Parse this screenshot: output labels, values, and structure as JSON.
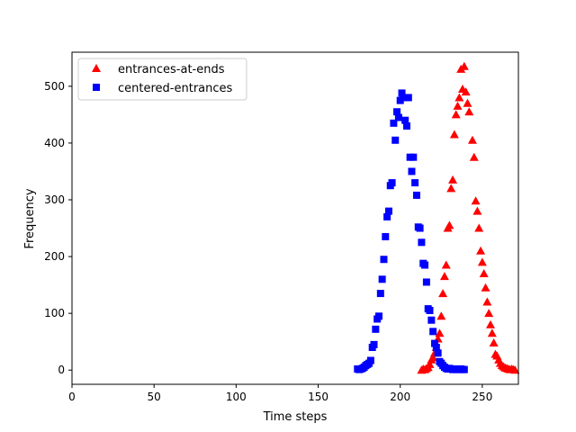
{
  "chart_data": {
    "type": "scatter",
    "xlabel": "Time steps",
    "ylabel": "Frequency",
    "xlim": [
      0,
      272
    ],
    "ylim": [
      -25,
      560
    ],
    "xticks": [
      0,
      50,
      100,
      150,
      200,
      250
    ],
    "yticks": [
      0,
      100,
      200,
      300,
      400,
      500
    ],
    "legend_placement": "top-left",
    "series": [
      {
        "name": "entrances-at-ends",
        "marker": "triangle",
        "color": "#ff0000",
        "points": [
          [
            213,
            0
          ],
          [
            214,
            2
          ],
          [
            215,
            1
          ],
          [
            216,
            3
          ],
          [
            217,
            5
          ],
          [
            218,
            10
          ],
          [
            219,
            18
          ],
          [
            220,
            22
          ],
          [
            221,
            30
          ],
          [
            222,
            40
          ],
          [
            223,
            55
          ],
          [
            224,
            65
          ],
          [
            225,
            95
          ],
          [
            226,
            135
          ],
          [
            227,
            165
          ],
          [
            228,
            185
          ],
          [
            229,
            250
          ],
          [
            230,
            255
          ],
          [
            231,
            320
          ],
          [
            232,
            335
          ],
          [
            233,
            415
          ],
          [
            234,
            450
          ],
          [
            235,
            465
          ],
          [
            236,
            480
          ],
          [
            237,
            530
          ],
          [
            238,
            495
          ],
          [
            239,
            535
          ],
          [
            240,
            490
          ],
          [
            241,
            470
          ],
          [
            242,
            455
          ],
          [
            244,
            405
          ],
          [
            245,
            375
          ],
          [
            246,
            298
          ],
          [
            247,
            280
          ],
          [
            248,
            250
          ],
          [
            249,
            210
          ],
          [
            250,
            190
          ],
          [
            251,
            170
          ],
          [
            252,
            145
          ],
          [
            253,
            120
          ],
          [
            254,
            100
          ],
          [
            255,
            80
          ],
          [
            256,
            65
          ],
          [
            257,
            48
          ],
          [
            258,
            28
          ],
          [
            259,
            25
          ],
          [
            260,
            18
          ],
          [
            261,
            12
          ],
          [
            262,
            8
          ],
          [
            263,
            6
          ],
          [
            264,
            4
          ],
          [
            265,
            3
          ],
          [
            266,
            2
          ],
          [
            267,
            1
          ],
          [
            268,
            2
          ],
          [
            269,
            1
          ],
          [
            270,
            0
          ]
        ]
      },
      {
        "name": "centered-entrances",
        "marker": "square",
        "color": "#0000ff",
        "points": [
          [
            174,
            2
          ],
          [
            175,
            1
          ],
          [
            176,
            2
          ],
          [
            177,
            3
          ],
          [
            178,
            5
          ],
          [
            179,
            8
          ],
          [
            180,
            10
          ],
          [
            181,
            12
          ],
          [
            182,
            17
          ],
          [
            183,
            40
          ],
          [
            184,
            45
          ],
          [
            185,
            72
          ],
          [
            186,
            90
          ],
          [
            187,
            95
          ],
          [
            188,
            135
          ],
          [
            189,
            160
          ],
          [
            190,
            195
          ],
          [
            191,
            235
          ],
          [
            192,
            270
          ],
          [
            193,
            280
          ],
          [
            194,
            325
          ],
          [
            195,
            330
          ],
          [
            196,
            435
          ],
          [
            197,
            405
          ],
          [
            198,
            455
          ],
          [
            199,
            445
          ],
          [
            200,
            475
          ],
          [
            201,
            488
          ],
          [
            202,
            480
          ],
          [
            203,
            440
          ],
          [
            204,
            430
          ],
          [
            205,
            480
          ],
          [
            206,
            375
          ],
          [
            207,
            350
          ],
          [
            208,
            375
          ],
          [
            209,
            330
          ],
          [
            210,
            308
          ],
          [
            211,
            252
          ],
          [
            212,
            250
          ],
          [
            213,
            225
          ],
          [
            214,
            188
          ],
          [
            215,
            185
          ],
          [
            216,
            155
          ],
          [
            217,
            108
          ],
          [
            218,
            105
          ],
          [
            219,
            88
          ],
          [
            220,
            68
          ],
          [
            221,
            47
          ],
          [
            222,
            40
          ],
          [
            223,
            30
          ],
          [
            224,
            15
          ],
          [
            225,
            12
          ],
          [
            226,
            8
          ],
          [
            227,
            5
          ],
          [
            228,
            3
          ],
          [
            229,
            2
          ],
          [
            230,
            3
          ],
          [
            231,
            2
          ],
          [
            232,
            1
          ],
          [
            233,
            2
          ],
          [
            234,
            1
          ],
          [
            235,
            2
          ],
          [
            236,
            1
          ],
          [
            237,
            2
          ],
          [
            238,
            1
          ],
          [
            239,
            1
          ]
        ]
      }
    ]
  }
}
